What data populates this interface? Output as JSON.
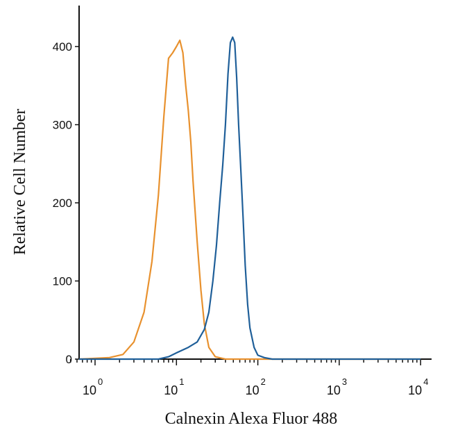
{
  "chart_data": {
    "type": "line",
    "title": "",
    "xlabel": "Calnexin Alexa Fluor 488",
    "ylabel": "Relative Cell Number",
    "xscale": "log",
    "xlim": [
      0.5,
      10000
    ],
    "ylim": [
      0,
      430
    ],
    "grid": false,
    "x_ticks": [
      {
        "base": "10",
        "exp": "0",
        "value": 1
      },
      {
        "base": "10",
        "exp": "1",
        "value": 10
      },
      {
        "base": "10",
        "exp": "2",
        "value": 100
      },
      {
        "base": "10",
        "exp": "3",
        "value": 1000
      },
      {
        "base": "10",
        "exp": "4",
        "value": 10000
      }
    ],
    "y_ticks": [
      0,
      100,
      200,
      300,
      400
    ],
    "series": [
      {
        "color": "#e8912e",
        "x": [
          0.5,
          1.5,
          2.2,
          3,
          4,
          5,
          6,
          7,
          8,
          9,
          10,
          11,
          12,
          13,
          14,
          15,
          16,
          18,
          20,
          22,
          25,
          30,
          40,
          10000
        ],
        "y": [
          0,
          2,
          6,
          22,
          60,
          125,
          210,
          310,
          385,
          392,
          400,
          408,
          392,
          350,
          318,
          278,
          228,
          150,
          88,
          45,
          15,
          3,
          0,
          0
        ]
      },
      {
        "color": "#1f5f99",
        "x": [
          0.5,
          6,
          8,
          10,
          14,
          18,
          22,
          25,
          28,
          31,
          34,
          37,
          40,
          43,
          46,
          49,
          52,
          55,
          58,
          62,
          66,
          70,
          75,
          80,
          90,
          100,
          120,
          150,
          10000
        ],
        "y": [
          0,
          0,
          3,
          8,
          15,
          22,
          38,
          60,
          100,
          145,
          200,
          248,
          300,
          365,
          405,
          412,
          405,
          360,
          300,
          240,
          180,
          120,
          70,
          40,
          15,
          5,
          2,
          0,
          0
        ]
      }
    ]
  }
}
